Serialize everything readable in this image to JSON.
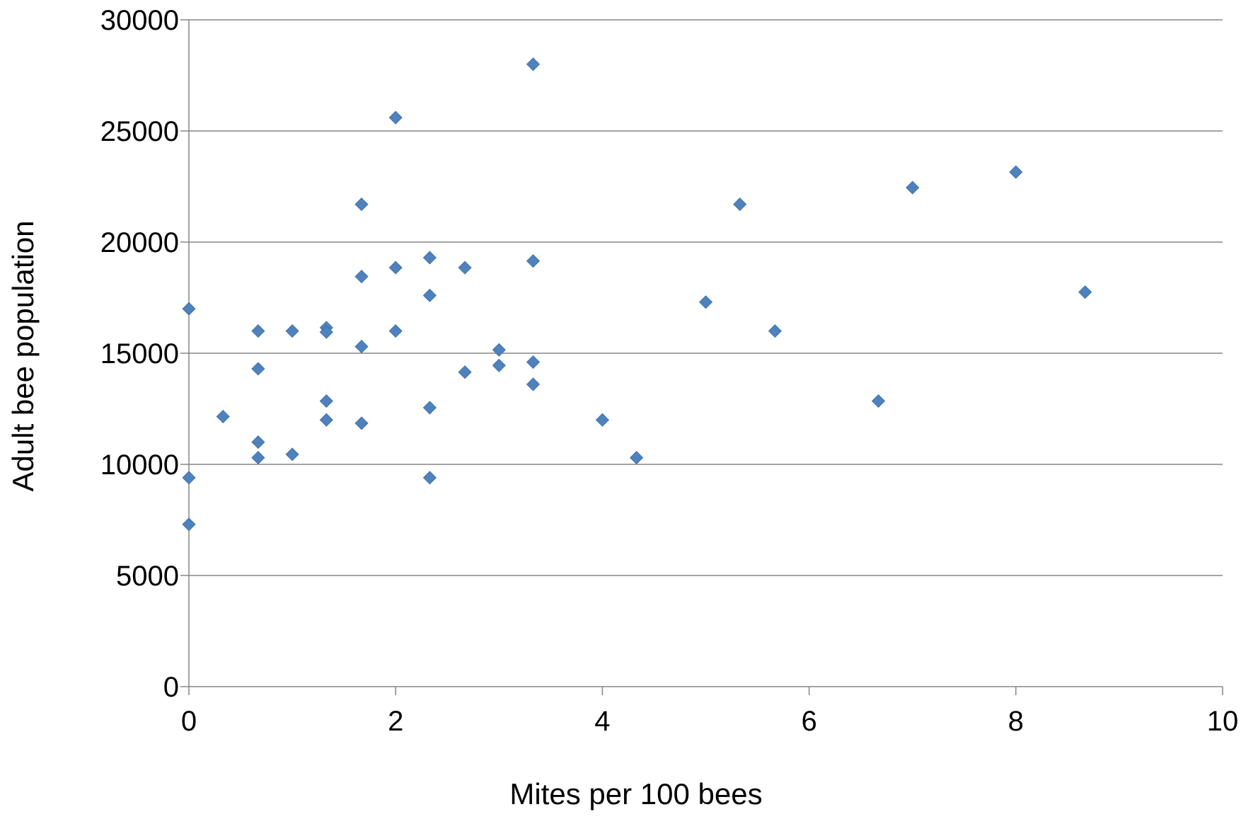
{
  "chart_data": {
    "type": "scatter",
    "title": "",
    "xlabel": "Mites per 100 bees",
    "ylabel": "Adult  bee population",
    "xlim": [
      0,
      10
    ],
    "ylim": [
      0,
      30000
    ],
    "x_ticks": [
      0,
      2,
      4,
      6,
      8,
      10
    ],
    "y_ticks": [
      0,
      5000,
      10000,
      15000,
      20000,
      25000,
      30000
    ],
    "x_tick_labels": [
      "0",
      "2",
      "4",
      "6",
      "8",
      "10"
    ],
    "y_tick_labels": [
      "0",
      "5000",
      "10000",
      "15000",
      "20000",
      "25000",
      "30000"
    ],
    "grid": "horizontal",
    "legend": "none",
    "marker": "diamond",
    "colors": {
      "marker": "#4f81bd",
      "gridline": "#868686",
      "axis": "#868686"
    },
    "series": [
      {
        "points": [
          [
            0,
            17000
          ],
          [
            0,
            9400
          ],
          [
            0,
            7300
          ],
          [
            0.33,
            12150
          ],
          [
            0.67,
            16000
          ],
          [
            0.67,
            14300
          ],
          [
            0.67,
            11000
          ],
          [
            0.67,
            10300
          ],
          [
            1,
            16000
          ],
          [
            1,
            10450
          ],
          [
            1.33,
            16150
          ],
          [
            1.33,
            15950
          ],
          [
            1.33,
            12850
          ],
          [
            1.33,
            12000
          ],
          [
            1.67,
            21700
          ],
          [
            1.67,
            18450
          ],
          [
            1.67,
            15300
          ],
          [
            1.67,
            11850
          ],
          [
            2,
            25600
          ],
          [
            2,
            18850
          ],
          [
            2,
            16000
          ],
          [
            2.33,
            19300
          ],
          [
            2.33,
            17600
          ],
          [
            2.33,
            12550
          ],
          [
            2.33,
            9400
          ],
          [
            2.67,
            18850
          ],
          [
            2.67,
            14150
          ],
          [
            3,
            15150
          ],
          [
            3,
            14450
          ],
          [
            3.33,
            28000
          ],
          [
            3.33,
            19150
          ],
          [
            3.33,
            14600
          ],
          [
            3.33,
            13600
          ],
          [
            4,
            12000
          ],
          [
            4.33,
            10300
          ],
          [
            5,
            17300
          ],
          [
            5.33,
            21700
          ],
          [
            5.67,
            16000
          ],
          [
            6.67,
            12850
          ],
          [
            7,
            22450
          ],
          [
            8,
            23150
          ],
          [
            8.67,
            17750
          ]
        ]
      }
    ]
  }
}
